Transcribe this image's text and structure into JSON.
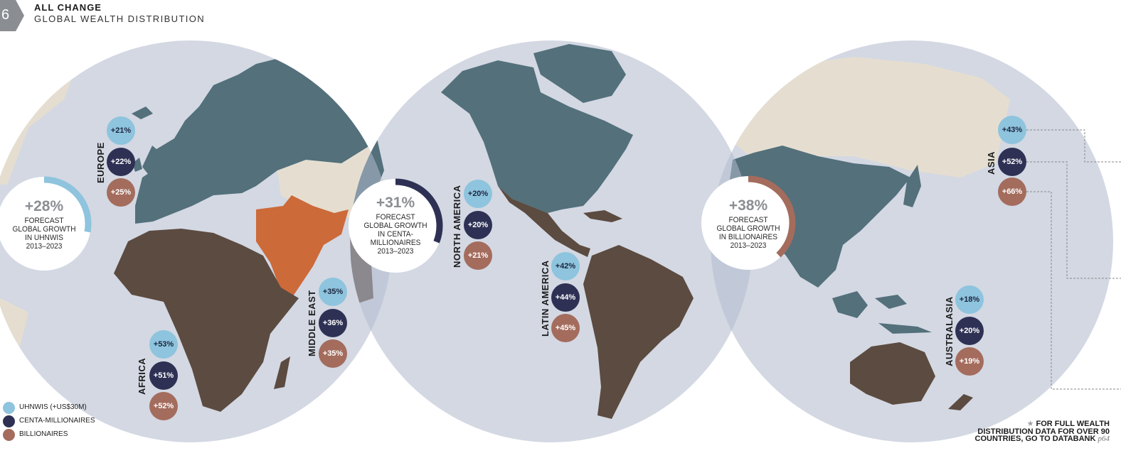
{
  "page_number": "6",
  "header": {
    "title": "ALL CHANGE",
    "subtitle": "GLOBAL WEALTH DISTRIBUTION"
  },
  "forecasts": [
    {
      "pct": "+28%",
      "label": "FORECAST\nGLOBAL GROWTH\nIN UHNWIS\n2013–2023",
      "share": 0.28,
      "color": "#8ec4dd"
    },
    {
      "pct": "+31%",
      "label": "FORECAST\nGLOBAL GROWTH\nIN CENTA-\nMILLIONAIRES\n2013–2023",
      "share": 0.31,
      "color": "#2e3154"
    },
    {
      "pct": "+38%",
      "label": "FORECAST\nGLOBAL GROWTH\nIN BILLIONAIRES\n2013–2023",
      "share": 0.38,
      "color": "#a46c5d"
    }
  ],
  "regions": {
    "europe": {
      "name": "EUROPE",
      "uhnwi": "+21%",
      "centa": "+22%",
      "billionaires": "+25%"
    },
    "africa": {
      "name": "AFRICA",
      "uhnwi": "+53%",
      "centa": "+51%",
      "billionaires": "+52%"
    },
    "middle_east": {
      "name": "MIDDLE EAST",
      "uhnwi": "+35%",
      "centa": "+36%",
      "billionaires": "+35%"
    },
    "north_america": {
      "name": "NORTH AMERICA",
      "uhnwi": "+20%",
      "centa": "+20%",
      "billionaires": "+21%"
    },
    "latin_america": {
      "name": "LATIN AMERICA",
      "uhnwi": "+42%",
      "centa": "+44%",
      "billionaires": "+45%"
    },
    "asia": {
      "name": "ASIA",
      "uhnwi": "+43%",
      "centa": "+52%",
      "billionaires": "+66%"
    },
    "australasia": {
      "name": "AUSTRALASIA",
      "uhnwi": "+18%",
      "centa": "+20%",
      "billionaires": "+19%"
    }
  },
  "legend": [
    {
      "label": "UHNWIS (+US$30M)",
      "color": "#8ec4dd"
    },
    {
      "label": "CENTA-MILLIONAIRES",
      "color": "#2e3154"
    },
    {
      "label": "BILLIONAIRES",
      "color": "#a46c5d"
    }
  ],
  "footnote": {
    "icon": "star-icon",
    "line1": "FOR FULL WEALTH",
    "line2": "DISTRIBUTION DATA FOR OVER 90",
    "line3": "COUNTRIES, GO TO DATABANK",
    "page_ref": "p64"
  },
  "colors": {
    "globe": "#d3d8e3",
    "globe_overlap": "#b2bccd",
    "land_neutral": "#e5ded0",
    "land_blue": "#53707b",
    "land_brown": "#5c4b40",
    "land_orange": "#cc6a3a"
  }
}
